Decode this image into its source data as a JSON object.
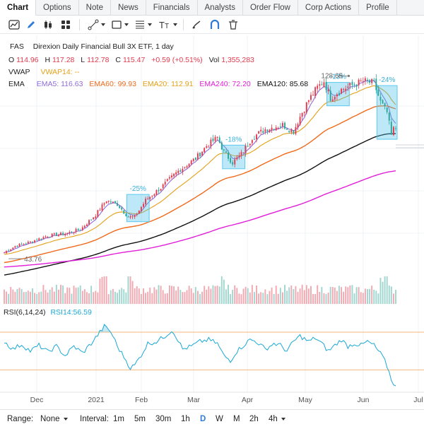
{
  "tabs": [
    {
      "label": "Chart",
      "active": true
    },
    {
      "label": "Options",
      "active": false
    },
    {
      "label": "Note",
      "active": false
    },
    {
      "label": "News",
      "active": false
    },
    {
      "label": "Financials",
      "active": false
    },
    {
      "label": "Analysts",
      "active": false
    },
    {
      "label": "Order Flow",
      "active": false
    },
    {
      "label": "Corp Actions",
      "active": false
    },
    {
      "label": "Profile",
      "active": false
    }
  ],
  "toolbar": {
    "icons": [
      "area-chart-icon",
      "pen-icon",
      "candlestick-icon",
      "grid-icon",
      "line-tool-icon",
      "rectangle-tool-icon",
      "fibonacci-icon",
      "text-tool-icon",
      "brush-icon",
      "magnet-icon",
      "trash-icon"
    ],
    "active_icon": "pen-icon",
    "accent": "#2f7bd8"
  },
  "legend": {
    "symbol": "FAS",
    "name": "Direxion Daily Financial Bull 3X ETF, 1 day",
    "open_label": "O",
    "open": "114.96",
    "high_label": "H",
    "high": "117.28",
    "low_label": "L",
    "low": "112.78",
    "close_label": "C",
    "close": "115.47",
    "change": "+0.59 (+0.51%)",
    "vol_label": "Vol",
    "vol": "1,355,283",
    "vwap_label": "VWAP",
    "vwap14": "VWAP14: --",
    "ema_label": "EMA",
    "ema5": "EMA5: 116.63",
    "ema60": "EMA60: 99.93",
    "ema20": "EMA20: 112.91",
    "ema240": "EMA240: 72.20",
    "ema120": "EMA120: 85.68",
    "colors": {
      "up": "#e23b4e",
      "down": "#2aa79b",
      "ema5": "#8e6bd8",
      "ema20": "#e3a017",
      "ema60": "#f06a1c",
      "ema240": "#e11ed8",
      "ema120": "#111111",
      "vwap": "#e3a017"
    }
  },
  "rsi_legend": {
    "label": "RSI(6,14,24)",
    "value": "RSI14:56.59",
    "color": "#1aa8d6",
    "band_color": "#f5b87a"
  },
  "chart_data": {
    "type": "candlestick",
    "x_ticks": [
      "Dec",
      "2021",
      "Feb",
      "Mar",
      "Apr",
      "May",
      "Jun",
      "Jul"
    ],
    "y_range": [
      40,
      132
    ],
    "markers": [
      {
        "text": "128.65",
        "kind": "high"
      },
      {
        "text": "43.76",
        "kind": "low"
      }
    ],
    "anchors": [
      [
        0,
        45
      ],
      [
        5,
        48
      ],
      [
        12,
        50
      ],
      [
        20,
        53
      ],
      [
        28,
        54
      ],
      [
        35,
        56
      ],
      [
        42,
        63
      ],
      [
        47,
        70
      ],
      [
        52,
        68
      ],
      [
        57,
        62
      ],
      [
        60,
        62
      ],
      [
        65,
        70
      ],
      [
        72,
        76
      ],
      [
        80,
        84
      ],
      [
        88,
        90
      ],
      [
        93,
        96
      ],
      [
        98,
        100
      ],
      [
        101,
        93
      ],
      [
        105,
        88
      ],
      [
        109,
        92
      ],
      [
        114,
        100
      ],
      [
        120,
        104
      ],
      [
        128,
        106
      ],
      [
        133,
        103
      ],
      [
        136,
        110
      ],
      [
        140,
        118
      ],
      [
        144,
        124
      ],
      [
        147,
        127
      ],
      [
        150,
        119
      ],
      [
        155,
        123
      ],
      [
        160,
        125
      ],
      [
        165,
        127
      ],
      [
        170,
        126
      ],
      [
        173,
        117
      ],
      [
        176,
        112
      ],
      [
        178,
        101
      ],
      [
        179,
        104
      ]
    ],
    "drawdowns": [
      {
        "label": "-25%",
        "from": 57,
        "to": 66
      },
      {
        "label": "-18%",
        "from": 101,
        "to": 110
      },
      {
        "label": "-13%",
        "from": 149,
        "to": 158
      },
      {
        "label": "-24%",
        "from": 172,
        "to": 180
      }
    ],
    "ema_lines": [
      {
        "name": "EMA5",
        "period": 5,
        "color": "#8e6bd8"
      },
      {
        "name": "EMA20",
        "period": 20,
        "color": "#e3a017"
      },
      {
        "name": "EMA60",
        "period": 60,
        "color": "#f06a1c"
      },
      {
        "name": "EMA120",
        "period": 120,
        "color": "#111111"
      },
      {
        "name": "EMA240",
        "period": 240,
        "color": "#e11ed8"
      }
    ],
    "rsi": {
      "upper": 70,
      "lower": 30,
      "anchors": [
        [
          0,
          60
        ],
        [
          4,
          52
        ],
        [
          8,
          57
        ],
        [
          12,
          50
        ],
        [
          16,
          56
        ],
        [
          20,
          49
        ],
        [
          24,
          55
        ],
        [
          28,
          45
        ],
        [
          32,
          55
        ],
        [
          36,
          48
        ],
        [
          40,
          58
        ],
        [
          44,
          70
        ],
        [
          46,
          76
        ],
        [
          48,
          73
        ],
        [
          50,
          66
        ],
        [
          52,
          55
        ],
        [
          55,
          44
        ],
        [
          58,
          32
        ],
        [
          60,
          35
        ],
        [
          63,
          46
        ],
        [
          66,
          58
        ],
        [
          70,
          60
        ],
        [
          74,
          66
        ],
        [
          77,
          72
        ],
        [
          79,
          66
        ],
        [
          82,
          52
        ],
        [
          86,
          55
        ],
        [
          90,
          60
        ],
        [
          94,
          62
        ],
        [
          98,
          58
        ],
        [
          101,
          45
        ],
        [
          104,
          40
        ],
        [
          107,
          50
        ],
        [
          110,
          56
        ],
        [
          113,
          62
        ],
        [
          116,
          60
        ],
        [
          120,
          52
        ],
        [
          124,
          58
        ],
        [
          127,
          56
        ],
        [
          130,
          50
        ],
        [
          133,
          60
        ],
        [
          136,
          66
        ],
        [
          140,
          60
        ],
        [
          143,
          64
        ],
        [
          146,
          58
        ],
        [
          149,
          50
        ],
        [
          152,
          56
        ],
        [
          155,
          62
        ],
        [
          158,
          55
        ],
        [
          161,
          58
        ],
        [
          164,
          56
        ],
        [
          167,
          60
        ],
        [
          170,
          56
        ],
        [
          172,
          50
        ],
        [
          174,
          44
        ],
        [
          176,
          34
        ],
        [
          178,
          20
        ],
        [
          180,
          12
        ]
      ]
    },
    "volume": {
      "up_color": "#f1a8b0",
      "down_color": "#9fd6cf"
    }
  },
  "bottom": {
    "range_label": "Range:",
    "range_value": "None",
    "interval_label": "Interval:",
    "intervals": [
      "1m",
      "5m",
      "30m",
      "1h",
      "D",
      "W",
      "M",
      "2h",
      "4h"
    ],
    "active_interval": "D"
  }
}
